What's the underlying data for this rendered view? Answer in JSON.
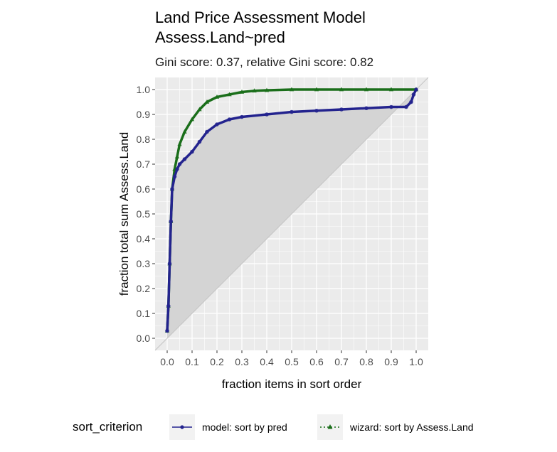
{
  "chart_data": {
    "type": "line",
    "title": "Land Price Assessment Model",
    "title_line2": "Assess.Land~pred",
    "subtitle": "Gini score: 0.37, relative Gini score: 0.82",
    "xlabel": "fraction items in sort order",
    "ylabel": "fraction total sum Assess.Land",
    "xlim": [
      0.0,
      1.0
    ],
    "ylim": [
      0.0,
      1.0
    ],
    "x_ticks": [
      "0.0",
      "0.1",
      "0.2",
      "0.3",
      "0.4",
      "0.5",
      "0.6",
      "0.7",
      "0.8",
      "0.9",
      "1.0"
    ],
    "y_ticks": [
      "0.0",
      "0.1",
      "0.2",
      "0.3",
      "0.4",
      "0.5",
      "0.6",
      "0.7",
      "0.8",
      "0.9",
      "1.0"
    ],
    "grid": true,
    "legend_position": "bottom",
    "legend_title": "sort_criterion",
    "series": [
      {
        "name": "model: sort by pred",
        "color": "#23238e",
        "marker": "circle",
        "line_style": "solid",
        "x": [
          0.0,
          0.005,
          0.01,
          0.015,
          0.02,
          0.03,
          0.04,
          0.05,
          0.07,
          0.1,
          0.13,
          0.16,
          0.2,
          0.25,
          0.3,
          0.4,
          0.5,
          0.6,
          0.7,
          0.8,
          0.9,
          0.96,
          0.98,
          0.99,
          1.0
        ],
        "y": [
          0.03,
          0.13,
          0.3,
          0.47,
          0.6,
          0.65,
          0.68,
          0.7,
          0.72,
          0.75,
          0.79,
          0.83,
          0.86,
          0.88,
          0.89,
          0.9,
          0.91,
          0.915,
          0.92,
          0.925,
          0.93,
          0.93,
          0.95,
          0.98,
          1.0
        ]
      },
      {
        "name": "wizard: sort by Assess.Land",
        "color": "#1a6e1a",
        "marker": "triangle",
        "line_style": "dotted",
        "x": [
          0.0,
          0.005,
          0.01,
          0.015,
          0.02,
          0.03,
          0.04,
          0.05,
          0.07,
          0.1,
          0.13,
          0.16,
          0.2,
          0.25,
          0.3,
          0.35,
          0.4,
          0.5,
          0.6,
          0.7,
          0.8,
          0.9,
          1.0
        ],
        "y": [
          0.03,
          0.13,
          0.3,
          0.47,
          0.6,
          0.68,
          0.73,
          0.78,
          0.83,
          0.88,
          0.92,
          0.95,
          0.97,
          0.98,
          0.99,
          0.995,
          0.997,
          1.0,
          1.0,
          1.0,
          1.0,
          1.0,
          1.0
        ]
      }
    ]
  }
}
